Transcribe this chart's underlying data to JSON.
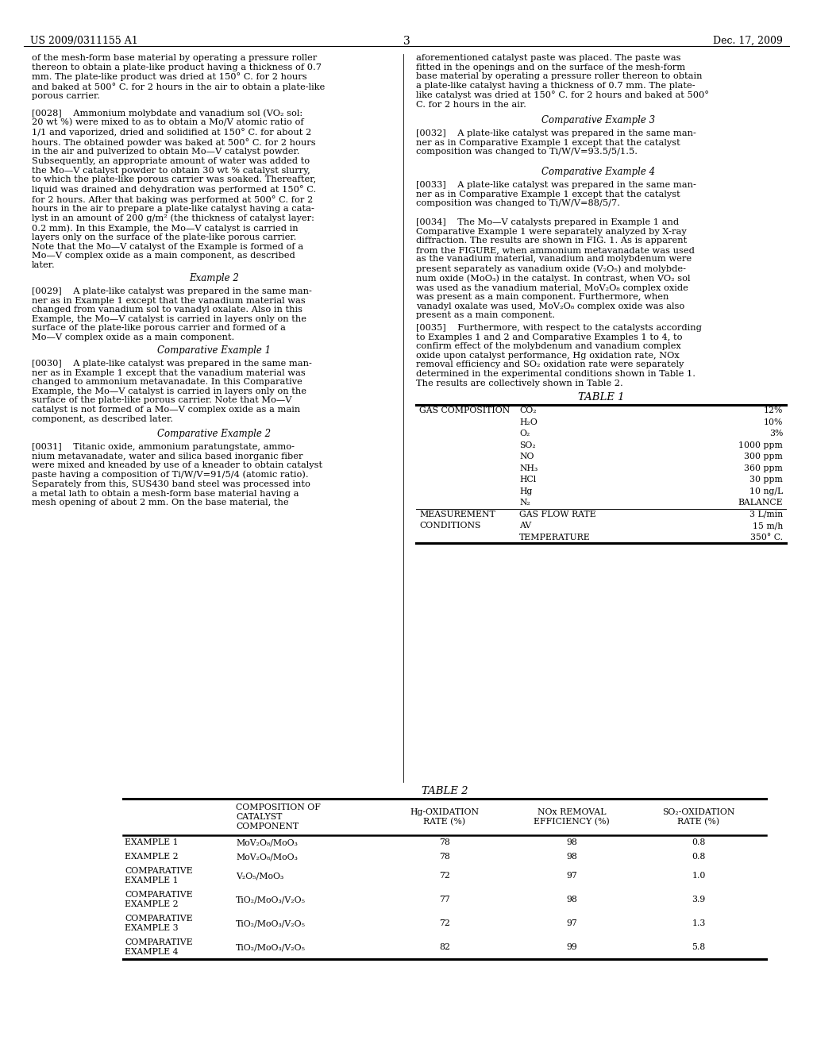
{
  "page_header_left": "US 2009/0311155 A1",
  "page_header_right": "Dec. 17, 2009",
  "page_number": "3",
  "background_color": "#ffffff",
  "left_col_paragraphs": [
    {
      "text": "of the mesh-form base material by operating a pressure roller\nthereon to obtain a plate-like product having a thickness of 0.7\nmm. The plate-like product was dried at 150° C. for 2 hours\nand baked at 500° C. for 2 hours in the air to obtain a plate-like\nporous carrier.",
      "style": "body"
    },
    {
      "text": "[0028]    Ammonium molybdate and vanadium sol (VO₂ sol:\n20 wt %) were mixed to as to obtain a Mo/V atomic ratio of\n1/1 and vaporized, dried and solidified at 150° C. for about 2\nhours. The obtained powder was baked at 500° C. for 2 hours\nin the air and pulverized to obtain Mo—V catalyst powder.\nSubsequently, an appropriate amount of water was added to\nthe Mo—V catalyst powder to obtain 30 wt % catalyst slurry,\nto which the plate-like porous carrier was soaked. Thereafter,\nliquid was drained and dehydration was performed at 150° C.\nfor 2 hours. After that baking was performed at 500° C. for 2\nhours in the air to prepare a plate-like catalyst having a cata-\nlyst in an amount of 200 g/m² (the thickness of catalyst layer:\n0.2 mm). In this Example, the Mo—V catalyst is carried in\nlayers only on the surface of the plate-like porous carrier.\nNote that the Mo—V catalyst of the Example is formed of a\nMo—V complex oxide as a main component, as described\nlater.",
      "style": "body"
    },
    {
      "text": "Example 2",
      "style": "section"
    },
    {
      "text": "[0029]    A plate-like catalyst was prepared in the same man-\nner as in Example 1 except that the vanadium material was\nchanged from vanadium sol to vanadyl oxalate. Also in this\nExample, the Mo—V catalyst is carried in layers only on the\nsurface of the plate-like porous carrier and formed of a\nMo—V complex oxide as a main component.",
      "style": "body"
    },
    {
      "text": "Comparative Example 1",
      "style": "section"
    },
    {
      "text": "[0030]    A plate-like catalyst was prepared in the same man-\nner as in Example 1 except that the vanadium material was\nchanged to ammonium metavanadate. In this Comparative\nExample, the Mo—V catalyst is carried in layers only on the\nsurface of the plate-like porous carrier. Note that Mo—V\ncatalyst is not formed of a Mo—V complex oxide as a main\ncomponent, as described later.",
      "style": "body"
    },
    {
      "text": "Comparative Example 2",
      "style": "section"
    },
    {
      "text": "[0031]    Titanic oxide, ammonium paratungstate, ammo-\nnium metavanadate, water and silica based inorganic fiber\nwere mixed and kneaded by use of a kneader to obtain catalyst\npaste having a composition of Ti/W/V=91/5/4 (atomic ratio).\nSeparately from this, SUS430 band steel was processed into\na metal lath to obtain a mesh-form base material having a\nmesh opening of about 2 mm. On the base material, the",
      "style": "body"
    }
  ],
  "right_col_paragraphs": [
    {
      "text": "aforementioned catalyst paste was placed. The paste was\nfitted in the openings and on the surface of the mesh-form\nbase material by operating a pressure roller thereon to obtain\na plate-like catalyst having a thickness of 0.7 mm. The plate-\nlike catalyst was dried at 150° C. for 2 hours and baked at 500°\nC. for 2 hours in the air.",
      "style": "body"
    },
    {
      "text": "Comparative Example 3",
      "style": "section"
    },
    {
      "text": "[0032]    A plate-like catalyst was prepared in the same man-\nner as in Comparative Example 1 except that the catalyst\ncomposition was changed to Ti/W/V=93.5/5/1.5.",
      "style": "body"
    },
    {
      "text": "Comparative Example 4",
      "style": "section"
    },
    {
      "text": "[0033]    A plate-like catalyst was prepared in the same man-\nner as in Comparative Example 1 except that the catalyst\ncomposition was changed to Ti/W/V=88/5/7.",
      "style": "body"
    },
    {
      "text": "[0034]    The Mo—V catalysts prepared in Example 1 and\nComparative Example 1 were separately analyzed by X-ray\ndiffraction. The results are shown in FIG. 1. As is apparent\nfrom the FIGURE, when ammonium metavanadate was used\nas the vanadium material, vanadium and molybdenum were\npresent separately as vanadium oxide (V₂O₅) and molybde-\nnum oxide (MoO₃) in the catalyst. In contrast, when VO₂ sol\nwas used as the vanadium material, MoV₂O₈ complex oxide\nwas present as a main component. Furthermore, when\nvanadyl oxalate was used, MoV₂O₈ complex oxide was also\npresent as a main component.",
      "style": "body"
    },
    {
      "text": "[0035]    Furthermore, with respect to the catalysts according\nto Examples 1 and 2 and Comparative Examples 1 to 4, to\nconfirm effect of the molybdenum and vanadium complex\noxide upon catalyst performance, Hg oxidation rate, NOx\nremoval efficiency and SO₂ oxidation rate were separately\ndetermined in the experimental conditions shown in Table 1.\nThe results are collectively shown in Table 2.",
      "style": "body"
    }
  ],
  "table1_title": "TABLE 1",
  "table1_rows": [
    [
      "GAS COMPOSITION",
      "CO₂",
      "12%"
    ],
    [
      "",
      "H₂O",
      "10%"
    ],
    [
      "",
      "O₂",
      "3%"
    ],
    [
      "",
      "SO₂",
      "1000 ppm"
    ],
    [
      "",
      "NO",
      "300 ppm"
    ],
    [
      "",
      "NH₃",
      "360 ppm"
    ],
    [
      "",
      "HCl",
      "30 ppm"
    ],
    [
      "",
      "Hg",
      "10 ng/L"
    ],
    [
      "",
      "N₂",
      "BALANCE"
    ],
    [
      "MEASUREMENT",
      "GAS FLOW RATE",
      "3 L/min"
    ],
    [
      "CONDITIONS",
      "AV",
      "15 m/h"
    ],
    [
      "",
      "TEMPERATURE",
      "350° C."
    ]
  ],
  "table2_title": "TABLE 2",
  "table2_header": [
    "",
    "COMPOSITION OF\nCATALYST\nCOMPONENT",
    "Hg-OXIDATION\nRATE (%)",
    "NOx REMOVAL\nEFFICIENCY (%)",
    "SO₂-OXIDATION\nRATE (%)"
  ],
  "table2_rows": [
    [
      "EXAMPLE 1",
      "MoV₂O₈/MoO₃",
      "78",
      "98",
      "0.8"
    ],
    [
      "EXAMPLE 2",
      "MoV₂O₈/MoO₃",
      "78",
      "98",
      "0.8"
    ],
    [
      "COMPARATIVE\nEXAMPLE 1",
      "V₂O₅/MoO₃",
      "72",
      "97",
      "1.0"
    ],
    [
      "COMPARATIVE\nEXAMPLE 2",
      "TiO₂/MoO₃/V₂O₅",
      "77",
      "98",
      "3.9"
    ],
    [
      "COMPARATIVE\nEXAMPLE 3",
      "TiO₂/MoO₃/V₂O₅",
      "72",
      "97",
      "1.3"
    ],
    [
      "COMPARATIVE\nEXAMPLE 4",
      "TiO₂/MoO₃/V₂O₅",
      "82",
      "99",
      "5.8"
    ]
  ]
}
